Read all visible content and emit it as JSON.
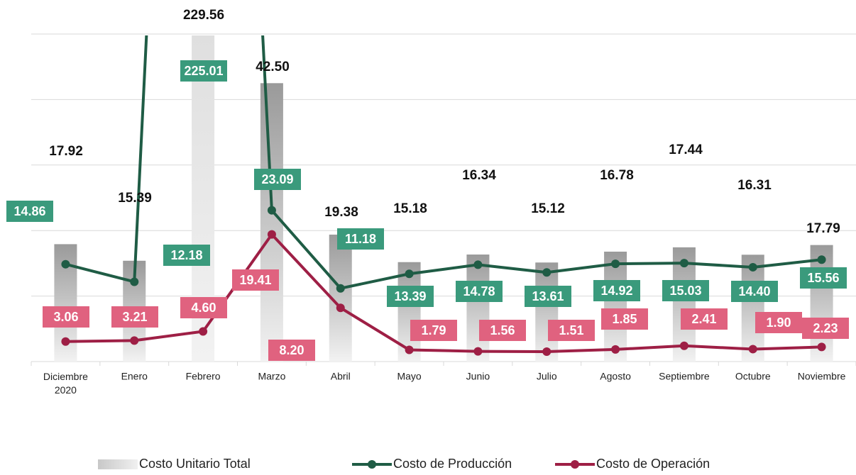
{
  "chart_data": {
    "type": "bar_line",
    "categories": [
      "Diciembre 2020",
      "Enero",
      "Febrero",
      "Marzo",
      "Abril",
      "Mayo",
      "Junio",
      "Julio",
      "Agosto",
      "Septiembre",
      "Octubre",
      "Noviembre"
    ],
    "series": [
      {
        "name": "Costo Unitario Total",
        "type": "bar",
        "color": "#b0b0b0",
        "values": [
          17.92,
          15.39,
          229.56,
          42.5,
          19.38,
          15.18,
          16.34,
          15.12,
          16.78,
          17.44,
          16.31,
          17.79
        ],
        "value_labels": [
          "17.92",
          "15.39",
          "229.56",
          "42.50",
          "19.38",
          "15.18",
          "16.34",
          "15.12",
          "16.78",
          "17.44",
          "16.31",
          "17.79"
        ]
      },
      {
        "name": "Costo de Producción",
        "type": "line",
        "color": "#1f5c45",
        "label_color": "#3a9a7c",
        "values": [
          14.86,
          12.18,
          225.01,
          23.09,
          11.18,
          13.39,
          14.78,
          13.61,
          14.92,
          15.03,
          14.4,
          15.56
        ],
        "value_labels": [
          "14.86",
          "12.18",
          "225.01",
          "23.09",
          "11.18",
          "13.39",
          "14.78",
          "13.61",
          "14.92",
          "15.03",
          "14.40",
          "15.56"
        ]
      },
      {
        "name": "Costo de Operación",
        "type": "line",
        "color": "#9e1f45",
        "label_color": "#e0627f",
        "values": [
          3.06,
          3.21,
          4.6,
          19.41,
          8.2,
          1.79,
          1.56,
          1.51,
          1.85,
          2.41,
          1.9,
          2.23
        ],
        "value_labels": [
          "3.06",
          "3.21",
          "4.60",
          "19.41",
          "8.20",
          "1.79",
          "1.56",
          "1.51",
          "1.85",
          "2.41",
          "1.90",
          "2.23"
        ]
      }
    ],
    "ylim": [
      0,
      50
    ],
    "yticks": [
      0,
      10,
      20,
      30,
      40,
      50
    ],
    "grid": true,
    "legend": "bottom"
  }
}
